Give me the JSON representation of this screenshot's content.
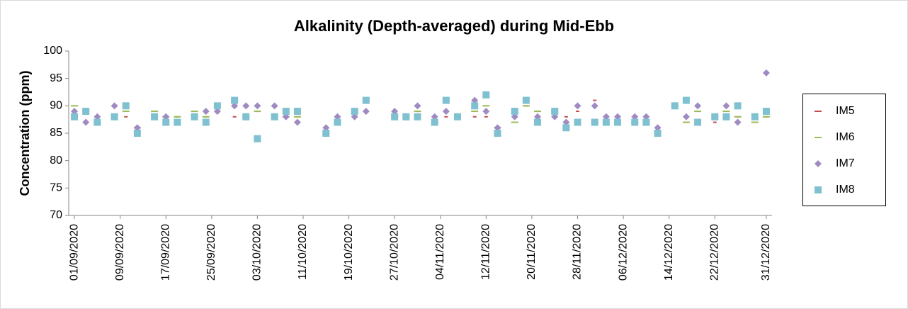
{
  "chart_data": {
    "type": "scatter",
    "title": "Alkalinity (Depth-averaged) during Mid-Ebb",
    "y_label": "Concentration (ppm)",
    "x": [
      "01/09/2020",
      "03/09/2020",
      "05/09/2020",
      "08/09/2020",
      "10/09/2020",
      "12/09/2020",
      "15/09/2020",
      "17/09/2020",
      "19/09/2020",
      "22/09/2020",
      "24/09/2020",
      "26/09/2020",
      "29/09/2020",
      "01/10/2020",
      "03/10/2020",
      "06/10/2020",
      "08/10/2020",
      "10/10/2020",
      "15/10/2020",
      "17/10/2020",
      "20/10/2020",
      "22/10/2020",
      "27/10/2020",
      "29/10/2020",
      "31/10/2020",
      "03/11/2020",
      "05/11/2020",
      "07/11/2020",
      "10/11/2020",
      "12/11/2020",
      "14/11/2020",
      "17/11/2020",
      "19/11/2020",
      "21/11/2020",
      "24/11/2020",
      "26/11/2020",
      "28/11/2020",
      "01/12/2020",
      "03/12/2020",
      "05/12/2020",
      "08/12/2020",
      "10/12/2020",
      "12/12/2020",
      "15/12/2020",
      "17/12/2020",
      "19/12/2020",
      "22/12/2020",
      "24/12/2020",
      "26/12/2020",
      "29/12/2020",
      "31/12/2020"
    ],
    "series": [
      {
        "name": "IM5",
        "color": "#c0504d",
        "marker": "dash",
        "values": [
          89,
          89,
          87,
          88,
          88,
          86,
          88,
          88,
          88,
          88,
          88,
          90,
          88,
          88,
          89,
          88,
          89,
          88,
          85,
          87,
          89,
          91,
          88,
          88,
          89,
          88,
          88,
          88,
          88,
          88,
          86,
          88,
          90,
          89,
          88,
          88,
          89,
          91,
          88,
          87,
          87,
          88,
          85,
          90,
          87,
          89,
          87,
          88,
          88,
          88,
          88
        ]
      },
      {
        "name": "IM6",
        "color": "#9bbb59",
        "marker": "dash",
        "values": [
          90,
          89,
          87,
          88,
          89,
          86,
          89,
          88,
          88,
          89,
          88,
          90,
          91,
          88,
          89,
          88,
          88,
          88,
          85,
          87,
          89,
          91,
          88,
          88,
          89,
          87,
          91,
          88,
          89,
          90,
          86,
          87,
          90,
          89,
          89,
          86,
          87,
          87,
          87,
          87,
          87,
          87,
          85,
          90,
          87,
          89,
          88,
          89,
          88,
          87,
          88
        ]
      },
      {
        "name": "IM7",
        "color": "#9f8bc2",
        "marker": "diamond",
        "values": [
          89,
          87,
          88,
          90,
          90,
          86,
          88,
          88,
          87,
          88,
          89,
          89,
          90,
          90,
          90,
          90,
          88,
          87,
          86,
          88,
          88,
          89,
          89,
          88,
          90,
          88,
          89,
          88,
          91,
          89,
          86,
          88,
          91,
          88,
          88,
          87,
          90,
          90,
          88,
          88,
          88,
          88,
          86,
          90,
          88,
          90,
          88,
          90,
          87,
          88,
          96
        ]
      },
      {
        "name": "IM8",
        "color": "#7fc1d0",
        "marker": "square",
        "values": [
          88,
          89,
          87,
          88,
          90,
          85,
          88,
          87,
          87,
          88,
          87,
          90,
          91,
          88,
          84,
          88,
          89,
          89,
          85,
          87,
          89,
          91,
          88,
          88,
          88,
          87,
          91,
          88,
          90,
          92,
          85,
          89,
          91,
          87,
          89,
          86,
          87,
          87,
          87,
          87,
          87,
          87,
          85,
          90,
          91,
          87,
          88,
          88,
          90,
          88,
          89
        ]
      }
    ],
    "xlim": [
      "31/08/2020",
      "01/01/2021"
    ],
    "xticks": [
      "01/09/2020",
      "09/09/2020",
      "17/09/2020",
      "25/09/2020",
      "03/10/2020",
      "11/10/2020",
      "19/10/2020",
      "27/10/2020",
      "04/11/2020",
      "12/11/2020",
      "20/11/2020",
      "28/11/2020",
      "06/12/2020",
      "14/12/2020",
      "22/12/2020",
      "31/12/2020"
    ],
    "ylim": [
      70,
      100
    ],
    "yticks": [
      70,
      75,
      80,
      85,
      90,
      95,
      100
    ],
    "grid": false,
    "legend": "right"
  }
}
